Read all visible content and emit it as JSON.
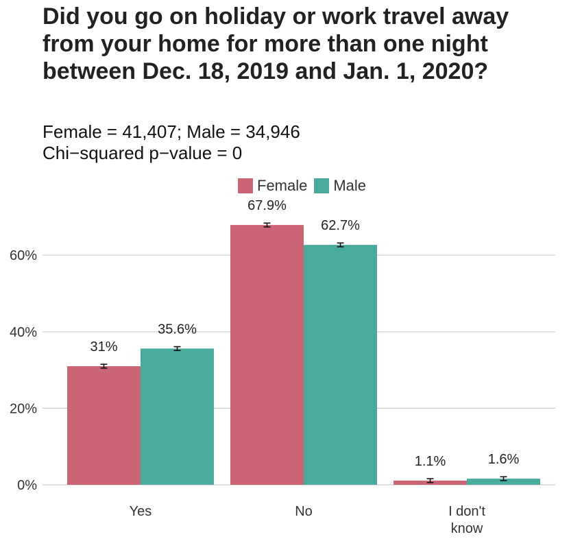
{
  "chart_data": {
    "type": "bar",
    "title": "Did you go on holiday or work travel away from your home for more than one night between Dec. 18, 2019 and Jan. 1, 2020?",
    "subtitle_lines": [
      "Female = 41,407; Male = 34,946",
      "Chi−squared p−value = 0"
    ],
    "categories": [
      [
        "Yes"
      ],
      [
        "No"
      ],
      [
        "I don't",
        "know"
      ]
    ],
    "series": [
      {
        "name": "Female",
        "color": "#CB6575",
        "values": [
          31.0,
          67.9,
          1.1
        ],
        "labels": [
          "31%",
          "67.9%",
          "1.1%"
        ]
      },
      {
        "name": "Male",
        "color": "#48AB9C",
        "values": [
          35.6,
          62.7,
          1.6
        ],
        "labels": [
          "35.6%",
          "62.7%",
          "1.6%"
        ]
      }
    ],
    "error_margin": 0.5,
    "yticks": [
      0,
      20,
      40,
      60
    ],
    "ytick_labels": [
      "0%",
      "20%",
      "40%",
      "60%"
    ],
    "ylim": [
      0,
      70
    ],
    "grid": true,
    "legend_position": "top"
  }
}
